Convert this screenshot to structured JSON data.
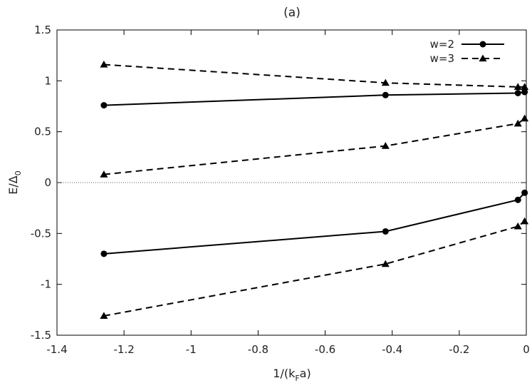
{
  "chart_data": {
    "type": "line",
    "title": "(a)",
    "xlabel": "1/(k",
    "xlabel_sub": "F",
    "xlabel_suffix": "a)",
    "ylabel": "E/Δ",
    "ylabel_sub": "0",
    "xlim": [
      -1.4,
      0
    ],
    "ylim": [
      -1.5,
      1.5
    ],
    "xticks": [
      -1.4,
      -1.2,
      -1.0,
      -0.8,
      -0.6,
      -0.4,
      -0.2,
      0
    ],
    "xtick_labels": [
      "-1.4",
      "-1.2",
      "-1",
      "-0.8",
      "-0.6",
      "-0.4",
      "-0.2",
      "0"
    ],
    "yticks": [
      -1.5,
      -1.0,
      -0.5,
      0,
      0.5,
      1.0,
      1.5
    ],
    "ytick_labels": [
      "-1.5",
      "-1",
      "-0.5",
      "0",
      "0.5",
      "1",
      "1.5"
    ],
    "grid": false,
    "zero_line": true,
    "legend_position": "top-right",
    "series": [
      {
        "name": "w=2",
        "style": "solid",
        "marker": "circle",
        "color": "#000000",
        "x": [
          -1.26,
          -0.42,
          -0.025,
          -0.005
        ],
        "y": [
          0.76,
          0.86,
          0.88,
          0.89
        ]
      },
      {
        "name": "",
        "style": "solid",
        "marker": "circle",
        "color": "#000000",
        "x": [
          -1.26,
          -0.42,
          -0.025,
          -0.005
        ],
        "y": [
          -0.7,
          -0.48,
          -0.17,
          -0.1
        ]
      },
      {
        "name": "w=3",
        "style": "dashed",
        "marker": "triangle",
        "color": "#000000",
        "x": [
          -1.26,
          -0.42,
          -0.025,
          -0.005
        ],
        "y": [
          1.16,
          0.98,
          0.94,
          0.94
        ]
      },
      {
        "name": "",
        "style": "dashed",
        "marker": "triangle",
        "color": "#000000",
        "x": [
          -1.26,
          -0.42,
          -0.025,
          -0.005
        ],
        "y": [
          0.08,
          0.36,
          0.58,
          0.63
        ]
      },
      {
        "name": "",
        "style": "dashed",
        "marker": "triangle",
        "color": "#000000",
        "x": [
          -1.26,
          -0.42,
          -0.025,
          -0.005
        ],
        "y": [
          -1.31,
          -0.8,
          -0.43,
          -0.38
        ]
      }
    ]
  }
}
